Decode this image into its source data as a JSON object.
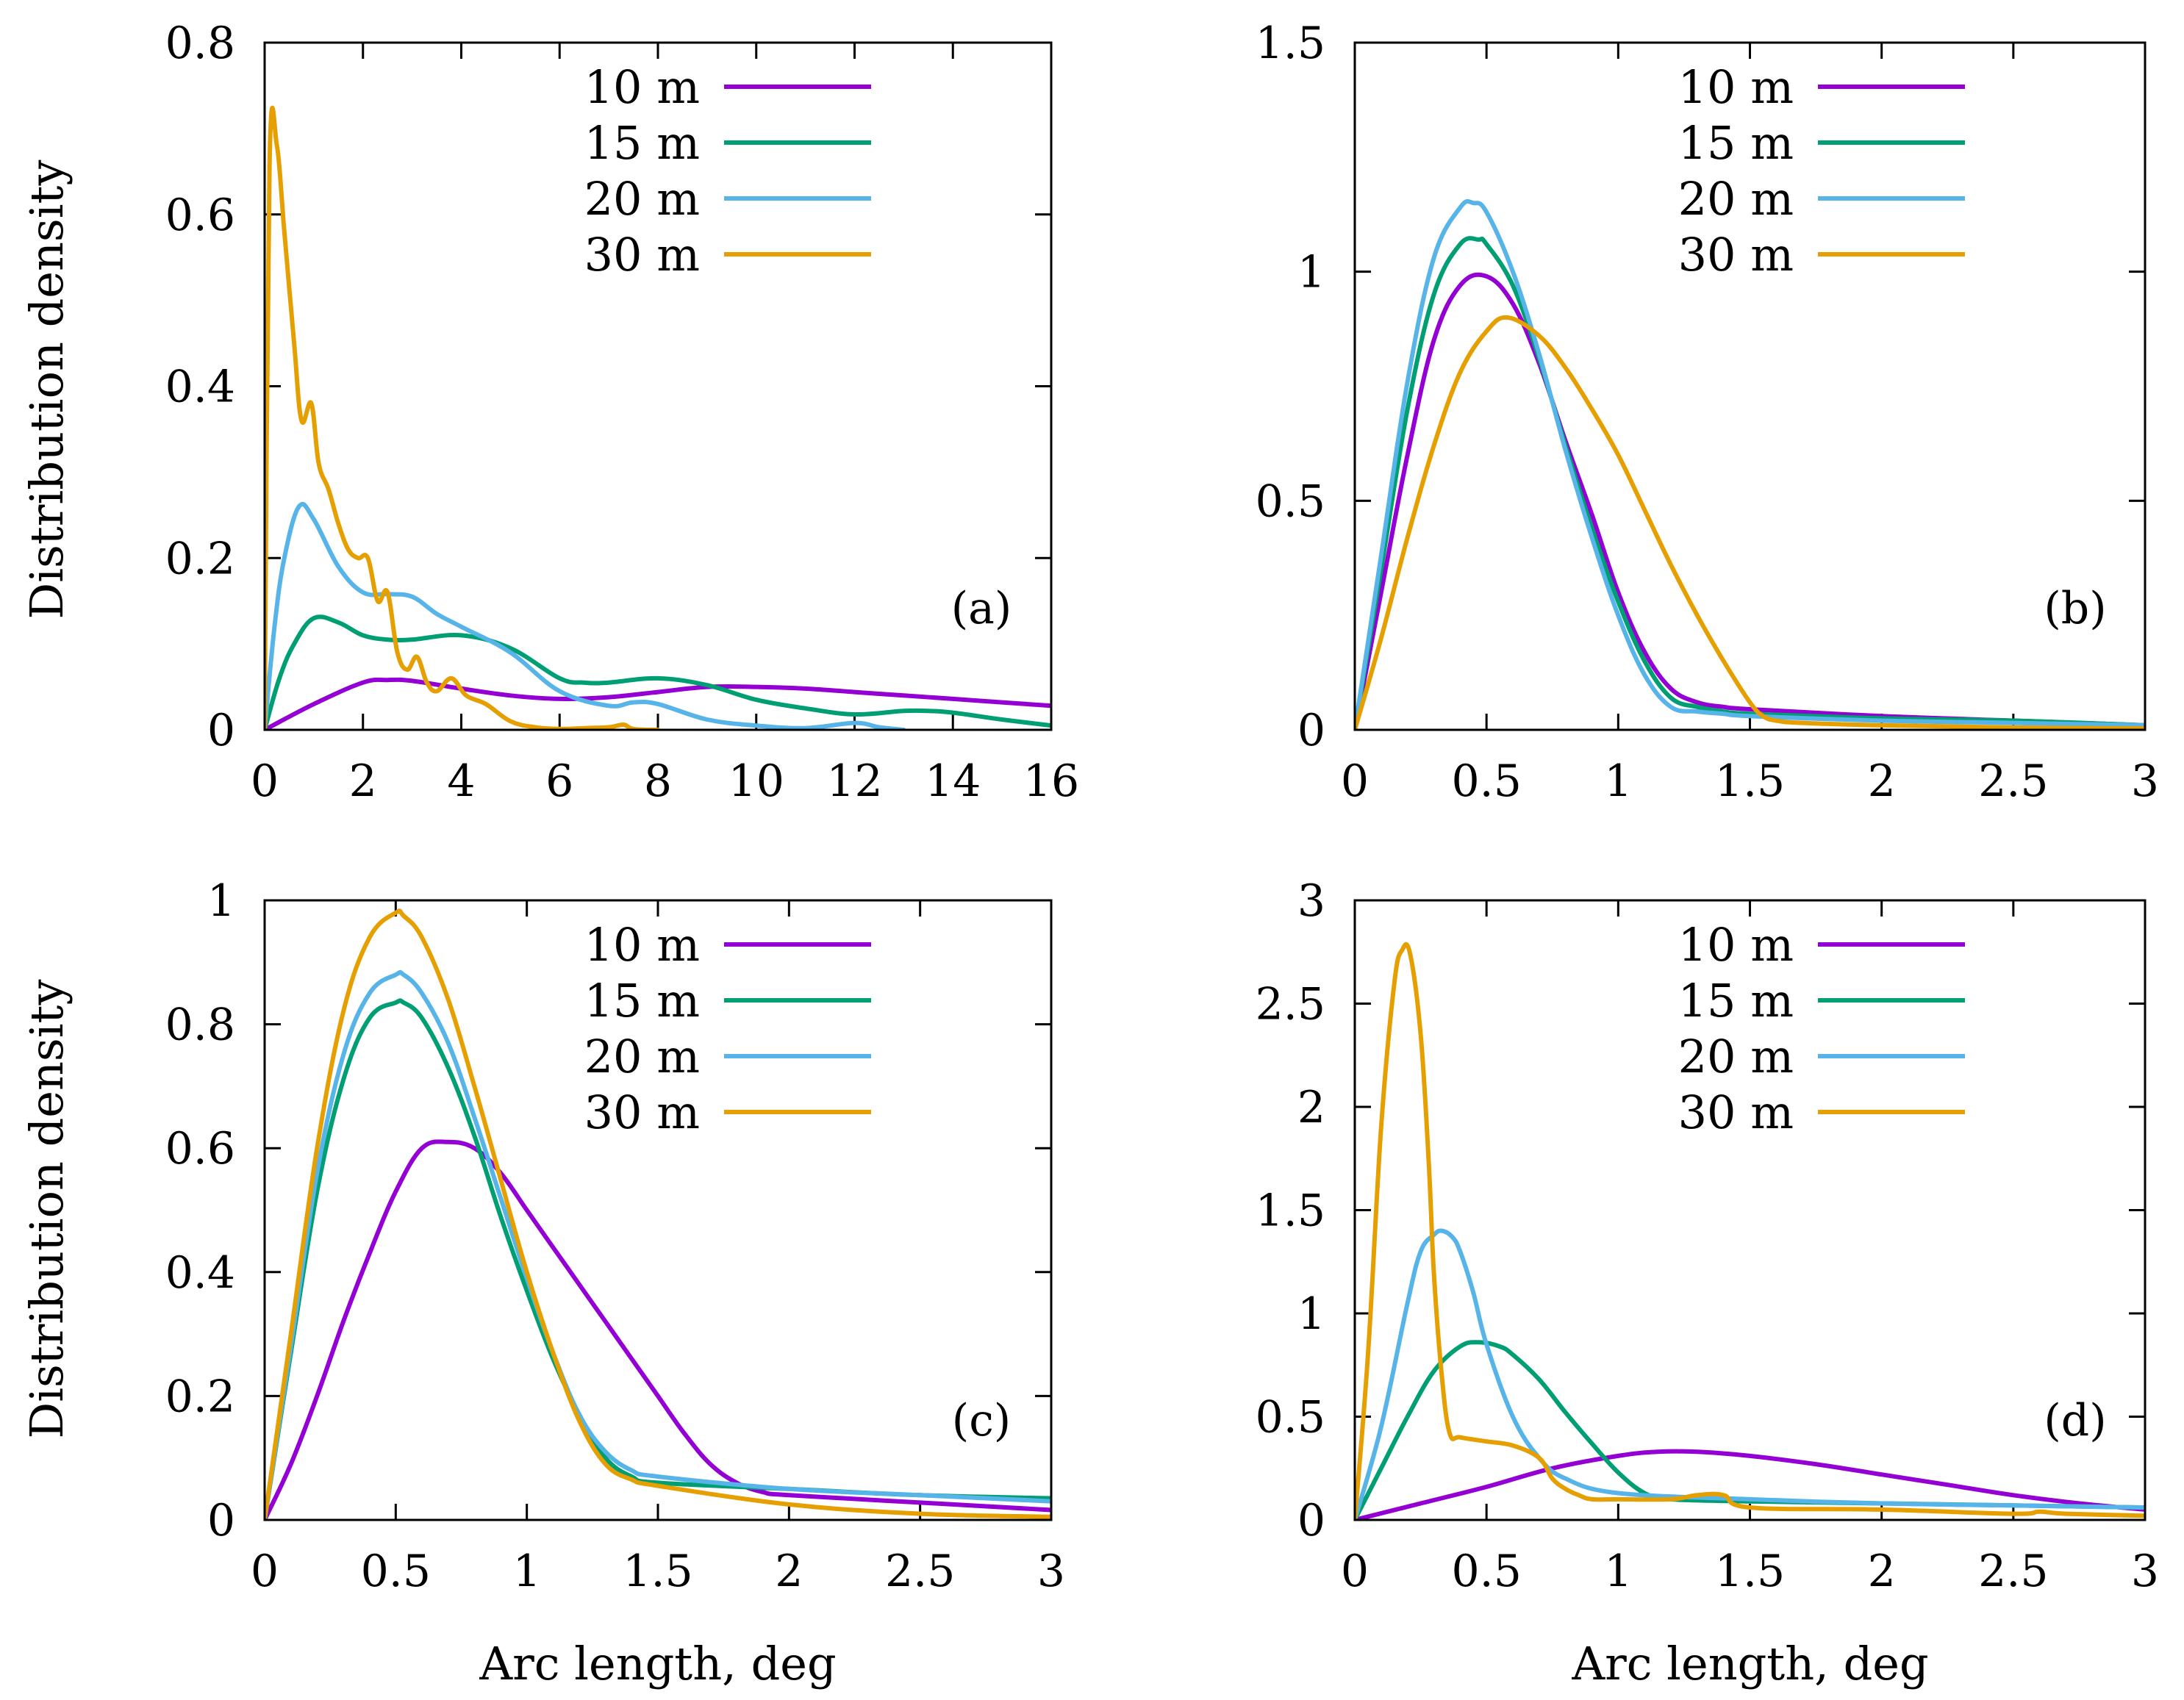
{
  "figure": {
    "ylabel_top": "Distribution density",
    "ylabel_bottom": "Distribution density",
    "xlabel_left": "Arc length, deg",
    "xlabel_right": "Arc length, deg"
  },
  "colors": {
    "10 m": "#9400d3",
    "15 m": "#009e73",
    "20 m": "#56b4e9",
    "30 m": "#e69f00"
  },
  "chart_data": [
    {
      "panel": "(a)",
      "type": "line",
      "xlim": [
        0,
        16
      ],
      "ylim": [
        0,
        0.8
      ],
      "xticks": [
        0,
        2,
        4,
        6,
        8,
        10,
        12,
        14,
        16
      ],
      "yticks": [
        0,
        0.2,
        0.4,
        0.6,
        0.8
      ],
      "xtick_labels": [
        "0",
        "2",
        "4",
        "6",
        "8",
        "10",
        "12",
        "14",
        "16"
      ],
      "ytick_labels": [
        "0",
        "0.2",
        "0.4",
        "0.6",
        "0.8"
      ],
      "legend": [
        "10 m",
        "15 m",
        "20 m",
        "30 m"
      ],
      "series": [
        {
          "name": "10 m",
          "x": [
            0,
            1,
            2,
            2.5,
            3,
            4,
            5,
            6,
            7,
            8,
            9,
            10,
            11,
            12,
            13,
            14,
            15,
            16
          ],
          "y": [
            0,
            0.03,
            0.055,
            0.058,
            0.057,
            0.048,
            0.04,
            0.036,
            0.038,
            0.044,
            0.05,
            0.05,
            0.048,
            0.044,
            0.04,
            0.036,
            0.032,
            0.028
          ]
        },
        {
          "name": "15 m",
          "x": [
            0,
            0.3,
            0.6,
            1,
            1.5,
            2,
            2.5,
            3,
            4,
            5,
            6,
            6.5,
            7,
            8,
            9,
            10,
            11,
            12,
            13,
            13.5,
            14,
            15,
            16
          ],
          "y": [
            0,
            0.06,
            0.1,
            0.13,
            0.125,
            0.11,
            0.105,
            0.105,
            0.11,
            0.095,
            0.06,
            0.055,
            0.055,
            0.06,
            0.052,
            0.035,
            0.025,
            0.018,
            0.022,
            0.022,
            0.02,
            0.012,
            0.005
          ]
        },
        {
          "name": "20 m",
          "x": [
            0,
            0.2,
            0.4,
            0.7,
            1,
            1.5,
            2,
            2.5,
            3,
            3.5,
            4,
            5,
            6,
            7,
            7.5,
            8,
            9,
            10,
            11,
            12,
            12.5,
            13
          ],
          "y": [
            0,
            0.12,
            0.2,
            0.26,
            0.245,
            0.19,
            0.16,
            0.158,
            0.155,
            0.135,
            0.12,
            0.09,
            0.045,
            0.028,
            0.032,
            0.03,
            0.012,
            0.005,
            0.002,
            0.008,
            0.003,
            0
          ]
        },
        {
          "name": "30 m",
          "x": [
            0,
            0.1,
            0.25,
            0.4,
            0.6,
            0.75,
            0.95,
            1.1,
            1.3,
            1.5,
            1.7,
            1.9,
            2.1,
            2.3,
            2.5,
            2.7,
            2.9,
            3.1,
            3.3,
            3.5,
            3.8,
            4.1,
            4.5,
            5,
            5.5,
            6,
            6.5,
            7,
            7.3,
            7.5,
            8
          ],
          "y": [
            0,
            0.66,
            0.68,
            0.58,
            0.45,
            0.36,
            0.38,
            0.31,
            0.28,
            0.24,
            0.21,
            0.2,
            0.2,
            0.15,
            0.16,
            0.09,
            0.07,
            0.085,
            0.055,
            0.045,
            0.06,
            0.04,
            0.03,
            0.01,
            0.003,
            0.001,
            0.002,
            0.003,
            0.006,
            0.001,
            0
          ]
        }
      ]
    },
    {
      "panel": "(b)",
      "type": "line",
      "xlim": [
        0,
        3
      ],
      "ylim": [
        0,
        1.5
      ],
      "xticks": [
        0,
        0.5,
        1,
        1.5,
        2,
        2.5,
        3
      ],
      "yticks": [
        0,
        0.5,
        1,
        1.5
      ],
      "xtick_labels": [
        "0",
        "0.5",
        "1",
        "1.5",
        "2",
        "2.5",
        "3"
      ],
      "ytick_labels": [
        "0",
        "0.5",
        "1",
        "1.5"
      ],
      "legend": [
        "10 m",
        "15 m",
        "20 m",
        "30 m"
      ],
      "series": [
        {
          "name": "10 m",
          "x": [
            0,
            0.1,
            0.2,
            0.3,
            0.4,
            0.5,
            0.6,
            0.7,
            0.8,
            0.9,
            1,
            1.1,
            1.2,
            1.3,
            1.4,
            1.5,
            2,
            2.5,
            3
          ],
          "y": [
            0,
            0.3,
            0.6,
            0.85,
            0.97,
            0.99,
            0.93,
            0.8,
            0.63,
            0.47,
            0.3,
            0.17,
            0.09,
            0.06,
            0.05,
            0.045,
            0.03,
            0.02,
            0.01
          ]
        },
        {
          "name": "15 m",
          "x": [
            0,
            0.1,
            0.2,
            0.3,
            0.4,
            0.47,
            0.5,
            0.6,
            0.7,
            0.8,
            0.9,
            1,
            1.1,
            1.2,
            1.3,
            1.4,
            1.5,
            2,
            2.5,
            3
          ],
          "y": [
            0,
            0.35,
            0.7,
            0.95,
            1.06,
            1.07,
            1.06,
            0.97,
            0.81,
            0.62,
            0.44,
            0.28,
            0.15,
            0.07,
            0.05,
            0.04,
            0.035,
            0.025,
            0.02,
            0.01
          ]
        },
        {
          "name": "20 m",
          "x": [
            0,
            0.1,
            0.2,
            0.3,
            0.4,
            0.45,
            0.5,
            0.6,
            0.7,
            0.8,
            0.9,
            1,
            1.1,
            1.2,
            1.3,
            1.4,
            1.5,
            2,
            2.5,
            3
          ],
          "y": [
            0,
            0.38,
            0.76,
            1.03,
            1.14,
            1.15,
            1.13,
            1.0,
            0.82,
            0.61,
            0.42,
            0.25,
            0.12,
            0.05,
            0.04,
            0.035,
            0.03,
            0.02,
            0.015,
            0.01
          ]
        },
        {
          "name": "30 m",
          "x": [
            0,
            0.1,
            0.2,
            0.3,
            0.4,
            0.5,
            0.58,
            0.7,
            0.8,
            0.9,
            1,
            1.1,
            1.2,
            1.3,
            1.4,
            1.5,
            1.55,
            1.6,
            1.7,
            2,
            2.5,
            3
          ],
          "y": [
            0,
            0.2,
            0.42,
            0.62,
            0.78,
            0.87,
            0.9,
            0.86,
            0.79,
            0.7,
            0.6,
            0.48,
            0.36,
            0.25,
            0.15,
            0.06,
            0.03,
            0.02,
            0.015,
            0.01,
            0.005,
            0.003
          ]
        }
      ]
    },
    {
      "panel": "(c)",
      "type": "line",
      "xlim": [
        0,
        3
      ],
      "ylim": [
        0,
        1
      ],
      "xticks": [
        0,
        0.5,
        1,
        1.5,
        2,
        2.5,
        3
      ],
      "yticks": [
        0,
        0.2,
        0.4,
        0.6,
        0.8,
        1
      ],
      "xtick_labels": [
        "0",
        "0.5",
        "1",
        "1.5",
        "2",
        "2.5",
        "3"
      ],
      "ytick_labels": [
        "0",
        "0.2",
        "0.4",
        "0.6",
        "0.8",
        "1"
      ],
      "legend": [
        "10 m",
        "15 m",
        "20 m",
        "30 m"
      ],
      "series": [
        {
          "name": "10 m",
          "x": [
            0,
            0.1,
            0.2,
            0.3,
            0.4,
            0.5,
            0.6,
            0.7,
            0.8,
            0.9,
            1,
            1.1,
            1.2,
            1.3,
            1.4,
            1.5,
            1.6,
            1.7,
            1.8,
            1.9,
            2,
            2.5,
            3
          ],
          "y": [
            0,
            0.09,
            0.2,
            0.32,
            0.43,
            0.53,
            0.6,
            0.61,
            0.6,
            0.56,
            0.5,
            0.44,
            0.38,
            0.32,
            0.26,
            0.2,
            0.14,
            0.09,
            0.06,
            0.045,
            0.04,
            0.028,
            0.016
          ]
        },
        {
          "name": "15 m",
          "x": [
            0,
            0.1,
            0.2,
            0.3,
            0.4,
            0.5,
            0.53,
            0.6,
            0.7,
            0.8,
            0.9,
            1,
            1.1,
            1.2,
            1.3,
            1.4,
            1.5,
            2,
            2.5,
            3
          ],
          "y": [
            0,
            0.27,
            0.53,
            0.71,
            0.81,
            0.835,
            0.835,
            0.81,
            0.73,
            0.62,
            0.49,
            0.37,
            0.26,
            0.17,
            0.1,
            0.07,
            0.06,
            0.05,
            0.04,
            0.035
          ]
        },
        {
          "name": "20 m",
          "x": [
            0,
            0.1,
            0.2,
            0.3,
            0.4,
            0.5,
            0.53,
            0.6,
            0.7,
            0.8,
            0.9,
            1,
            1.1,
            1.2,
            1.3,
            1.4,
            1.5,
            2,
            2.5,
            3
          ],
          "y": [
            0,
            0.28,
            0.56,
            0.75,
            0.85,
            0.88,
            0.88,
            0.85,
            0.77,
            0.65,
            0.52,
            0.39,
            0.27,
            0.17,
            0.11,
            0.08,
            0.07,
            0.05,
            0.04,
            0.03
          ]
        },
        {
          "name": "30 m",
          "x": [
            0,
            0.1,
            0.2,
            0.3,
            0.4,
            0.5,
            0.53,
            0.6,
            0.7,
            0.8,
            0.9,
            1,
            1.1,
            1.2,
            1.3,
            1.4,
            1.5,
            2,
            2.5,
            3
          ],
          "y": [
            0,
            0.3,
            0.6,
            0.82,
            0.94,
            0.98,
            0.975,
            0.94,
            0.84,
            0.7,
            0.55,
            0.4,
            0.27,
            0.16,
            0.09,
            0.065,
            0.055,
            0.025,
            0.01,
            0.005
          ]
        }
      ]
    },
    {
      "panel": "(d)",
      "type": "line",
      "xlim": [
        0,
        3
      ],
      "ylim": [
        0,
        3
      ],
      "xticks": [
        0,
        0.5,
        1,
        1.5,
        2,
        2.5,
        3
      ],
      "yticks": [
        0,
        0.5,
        1,
        1.5,
        2,
        2.5,
        3
      ],
      "xtick_labels": [
        "0",
        "0.5",
        "1",
        "1.5",
        "2",
        "2.5",
        "3"
      ],
      "ytick_labels": [
        "0",
        "0.5",
        "1",
        "1.5",
        "2",
        "2.5",
        "3"
      ],
      "legend": [
        "10 m",
        "15 m",
        "20 m",
        "30 m"
      ],
      "series": [
        {
          "name": "10 m",
          "x": [
            0,
            0.25,
            0.5,
            0.75,
            1,
            1.15,
            1.3,
            1.5,
            1.75,
            2,
            2.25,
            2.5,
            2.75,
            3
          ],
          "y": [
            0,
            0.08,
            0.16,
            0.25,
            0.31,
            0.33,
            0.33,
            0.31,
            0.27,
            0.22,
            0.17,
            0.12,
            0.08,
            0.05
          ]
        },
        {
          "name": "15 m",
          "x": [
            0,
            0.1,
            0.2,
            0.3,
            0.4,
            0.47,
            0.55,
            0.6,
            0.7,
            0.8,
            0.9,
            1,
            1.1,
            1.2,
            1.5,
            2,
            2.5,
            3
          ],
          "y": [
            0,
            0.25,
            0.5,
            0.72,
            0.84,
            0.86,
            0.84,
            0.8,
            0.68,
            0.52,
            0.37,
            0.23,
            0.13,
            0.1,
            0.09,
            0.08,
            0.07,
            0.06
          ]
        },
        {
          "name": "20 m",
          "x": [
            0,
            0.1,
            0.2,
            0.25,
            0.3,
            0.33,
            0.37,
            0.4,
            0.45,
            0.5,
            0.6,
            0.7,
            0.8,
            1,
            1.5,
            2,
            2.5,
            3
          ],
          "y": [
            0,
            0.45,
            1.05,
            1.3,
            1.38,
            1.4,
            1.37,
            1.3,
            1.1,
            0.85,
            0.5,
            0.3,
            0.2,
            0.13,
            0.1,
            0.08,
            0.07,
            0.06
          ]
        },
        {
          "name": "30 m",
          "x": [
            0,
            0.05,
            0.1,
            0.15,
            0.18,
            0.21,
            0.25,
            0.28,
            0.3,
            0.33,
            0.36,
            0.4,
            0.5,
            0.6,
            0.7,
            0.75,
            0.8,
            0.85,
            0.9,
            1,
            1.2,
            1.3,
            1.4,
            1.5,
            2,
            2.5,
            2.6,
            2.7,
            3
          ],
          "y": [
            0,
            0.8,
            1.9,
            2.6,
            2.76,
            2.74,
            2.35,
            1.75,
            1.2,
            0.7,
            0.42,
            0.4,
            0.38,
            0.36,
            0.3,
            0.2,
            0.15,
            0.12,
            0.1,
            0.1,
            0.1,
            0.12,
            0.12,
            0.06,
            0.05,
            0.03,
            0.04,
            0.03,
            0.02
          ]
        }
      ]
    }
  ]
}
